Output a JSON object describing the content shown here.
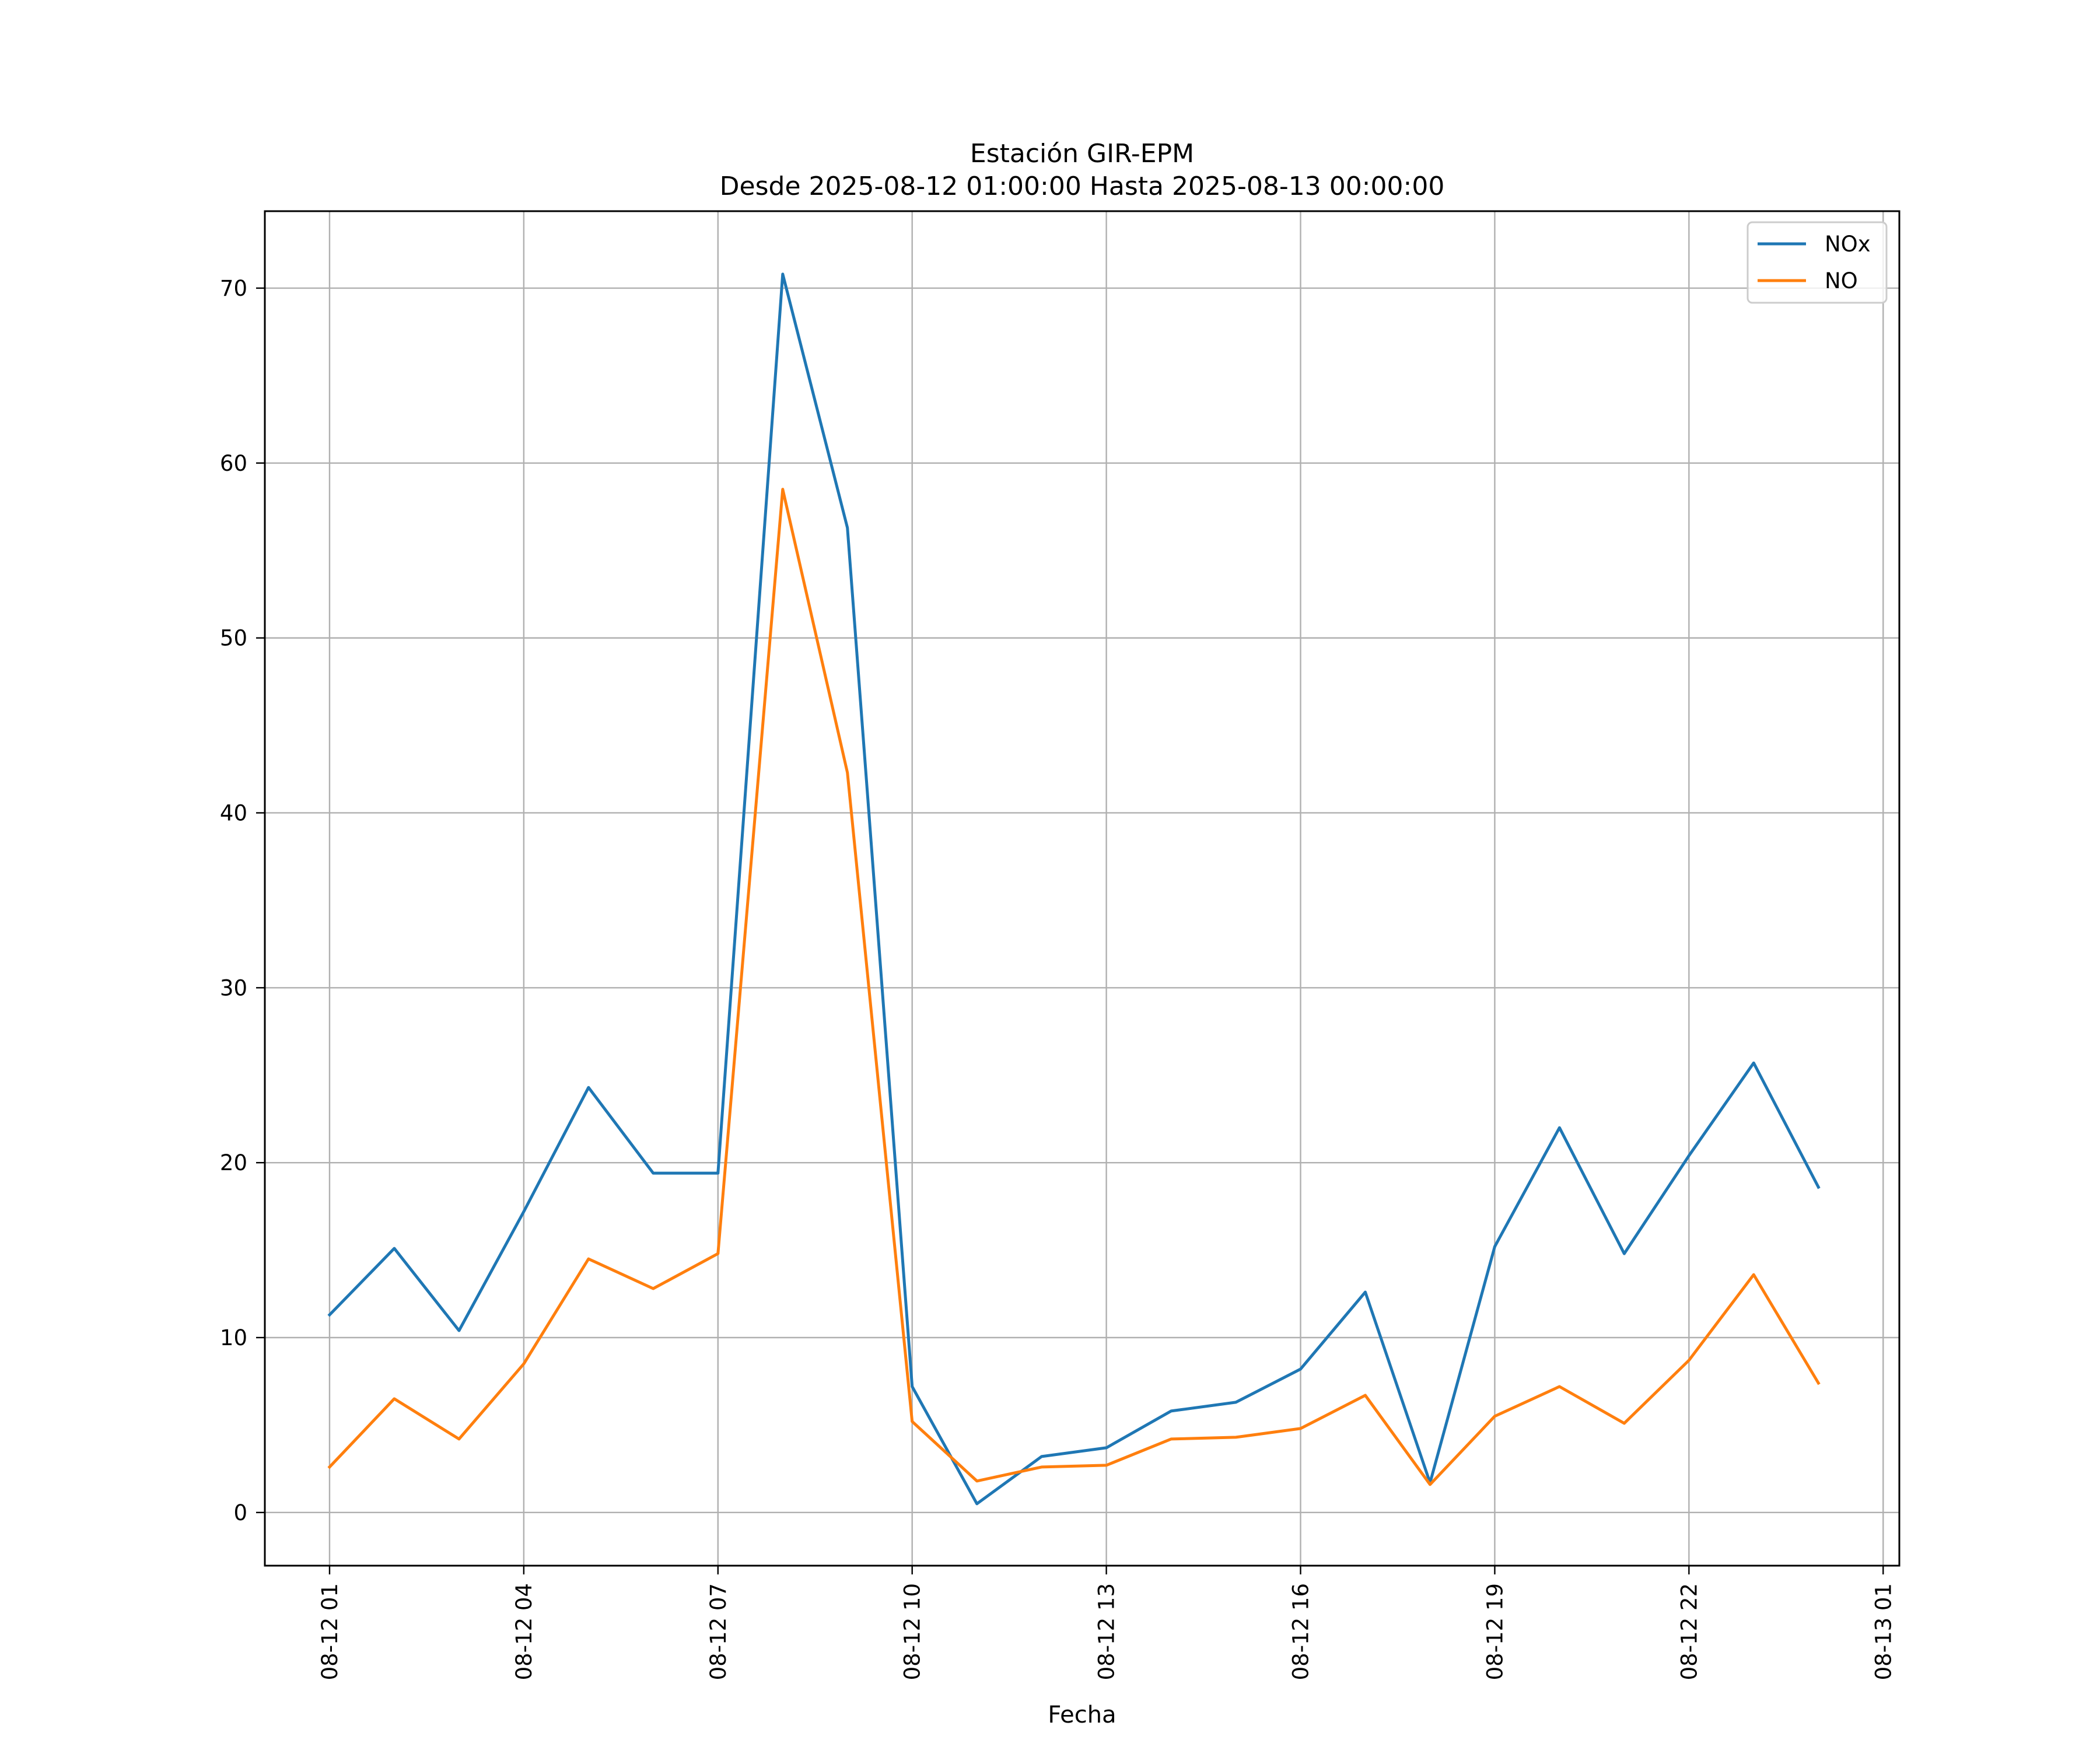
{
  "chart_data": {
    "type": "line",
    "title": "Estación GIR-EPM",
    "subtitle": "Desde 2025-08-12 01:00:00 Hasta 2025-08-13 00:00:00",
    "xlabel": "Fecha",
    "ylabel": "",
    "x": [
      "2025-08-12 01:00",
      "2025-08-12 02:00",
      "2025-08-12 03:00",
      "2025-08-12 04:00",
      "2025-08-12 05:00",
      "2025-08-12 06:00",
      "2025-08-12 07:00",
      "2025-08-12 08:00",
      "2025-08-12 09:00",
      "2025-08-12 10:00",
      "2025-08-12 11:00",
      "2025-08-12 12:00",
      "2025-08-12 13:00",
      "2025-08-12 14:00",
      "2025-08-12 15:00",
      "2025-08-12 16:00",
      "2025-08-12 17:00",
      "2025-08-12 18:00",
      "2025-08-12 19:00",
      "2025-08-12 20:00",
      "2025-08-12 21:00",
      "2025-08-12 22:00",
      "2025-08-12 23:00",
      "2025-08-13 00:00"
    ],
    "series": [
      {
        "name": "NOx",
        "color": "#1f77b4",
        "values": [
          11.3,
          15.1,
          10.4,
          17.2,
          24.3,
          19.4,
          19.4,
          70.8,
          56.3,
          7.2,
          0.5,
          3.2,
          3.7,
          5.8,
          6.3,
          8.2,
          12.6,
          1.7,
          15.2,
          22.0,
          14.8,
          20.4,
          25.7,
          18.6
        ]
      },
      {
        "name": "NO",
        "color": "#ff7f0e",
        "values": [
          2.6,
          6.5,
          4.2,
          8.5,
          14.5,
          12.8,
          14.8,
          58.5,
          42.3,
          5.2,
          1.8,
          2.6,
          2.7,
          4.2,
          4.3,
          4.8,
          6.7,
          1.6,
          5.5,
          7.2,
          5.1,
          8.7,
          13.6,
          7.4
        ]
      }
    ],
    "xticks": [
      "08-12 01",
      "08-12 04",
      "08-12 07",
      "08-12 10",
      "08-12 13",
      "08-12 16",
      "08-12 19",
      "08-12 22",
      "08-13 01"
    ],
    "xtick_values": [
      "2025-08-12 01:00",
      "2025-08-12 04:00",
      "2025-08-12 07:00",
      "2025-08-12 10:00",
      "2025-08-12 13:00",
      "2025-08-12 16:00",
      "2025-08-12 19:00",
      "2025-08-12 22:00",
      "2025-08-13 01:00"
    ],
    "xlim": [
      "2025-08-12 00:00",
      "2025-08-13 01:15"
    ],
    "yticks": [
      0,
      10,
      20,
      30,
      40,
      50,
      60,
      70
    ],
    "ylim": [
      -3.04,
      74.4
    ],
    "grid": true,
    "legend_position": "top-right"
  }
}
